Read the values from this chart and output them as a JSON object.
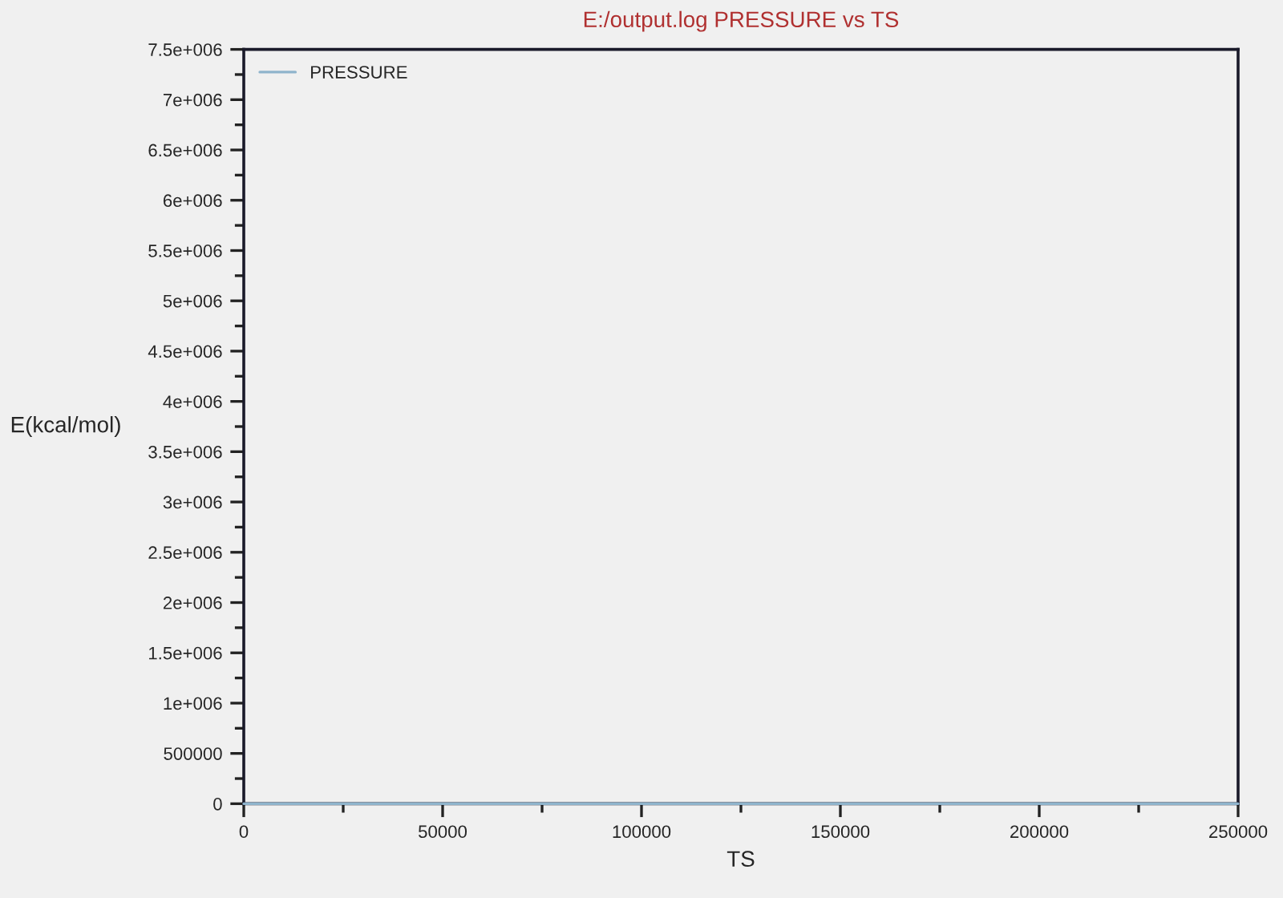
{
  "chart_data": {
    "type": "line",
    "title": "E:/output.log PRESSURE vs TS",
    "xlabel": "TS",
    "ylabel": "E(kcal/mol)",
    "series": [
      {
        "name": "PRESSURE",
        "color": "#8fb4cc",
        "x": [
          0,
          250000
        ],
        "values": [
          0,
          0
        ]
      }
    ],
    "xlim": [
      0,
      250000
    ],
    "xticks": [
      0,
      50000,
      100000,
      150000,
      200000,
      250000
    ],
    "ylim": [
      0,
      7500000
    ],
    "yticks": [
      0,
      500000,
      {
        "value": 1000000,
        "label": "1e+006"
      },
      {
        "value": 1500000,
        "label": "1.5e+006"
      },
      {
        "value": 2000000,
        "label": "2e+006"
      },
      {
        "value": 2500000,
        "label": "2.5e+006"
      },
      {
        "value": 3000000,
        "label": "3e+006"
      },
      {
        "value": 3500000,
        "label": "3.5e+006"
      },
      {
        "value": 4000000,
        "label": "4e+006"
      },
      {
        "value": 4500000,
        "label": "4.5e+006"
      },
      {
        "value": 5000000,
        "label": "5e+006"
      },
      {
        "value": 5500000,
        "label": "5.5e+006"
      },
      {
        "value": 6000000,
        "label": "6e+006"
      },
      {
        "value": 6500000,
        "label": "6.5e+006"
      },
      {
        "value": 7000000,
        "label": "7e+006"
      },
      {
        "value": 7500000,
        "label": "7.5e+006"
      }
    ],
    "grid": false,
    "legend": "top left",
    "marker": "none",
    "line_style": "solid"
  }
}
